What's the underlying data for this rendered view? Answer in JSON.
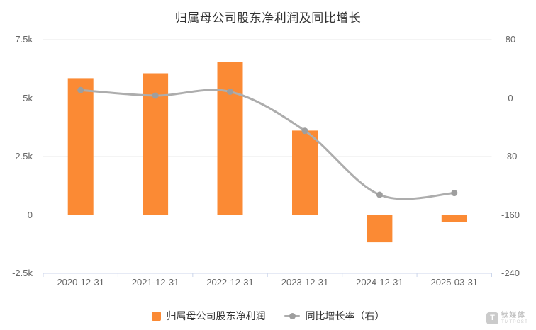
{
  "title": "归属母公司股东净利润及同比增长",
  "chart_data": {
    "type": "bar",
    "categories": [
      "2020-12-31",
      "2021-12-31",
      "2022-12-31",
      "2023-12-31",
      "2024-12-31",
      "2025-03-31"
    ],
    "series": [
      {
        "name": "归属母公司股东净利润",
        "type": "bar",
        "axis": "left",
        "color": "#fb8a34",
        "values": [
          5850,
          6060,
          6550,
          3610,
          -1170,
          -300
        ]
      },
      {
        "name": "同比增长率（右）",
        "type": "line",
        "axis": "right",
        "color": "#adadad",
        "marker_color": "#9e9e9e",
        "values": [
          11,
          3.4,
          8.7,
          -44.8,
          -132.4,
          -130
        ]
      }
    ],
    "left_axis": {
      "ticks": [
        "7.5k",
        "5k",
        "2.5k",
        "0",
        "-2.5k"
      ],
      "min": -2500,
      "max": 7500
    },
    "right_axis": {
      "ticks": [
        "80",
        "0",
        "-80",
        "-160",
        "-240"
      ],
      "min": -240,
      "max": 80
    },
    "grid": true,
    "grid_color": "#e9e9e9",
    "axis_line_color": "#ccd6eb",
    "legend_position": "bottom"
  },
  "legend": {
    "items": [
      {
        "label": "归属母公司股东净利润",
        "marker": "square",
        "color": "#fb8a34"
      },
      {
        "label": "同比增长率（右）",
        "marker": "line-dot",
        "color": "#adadad",
        "dot_color": "#9e9e9e"
      }
    ]
  },
  "watermark": {
    "logo_letter": "T",
    "name": "钛媒体",
    "subtitle": "TMTPOST"
  }
}
